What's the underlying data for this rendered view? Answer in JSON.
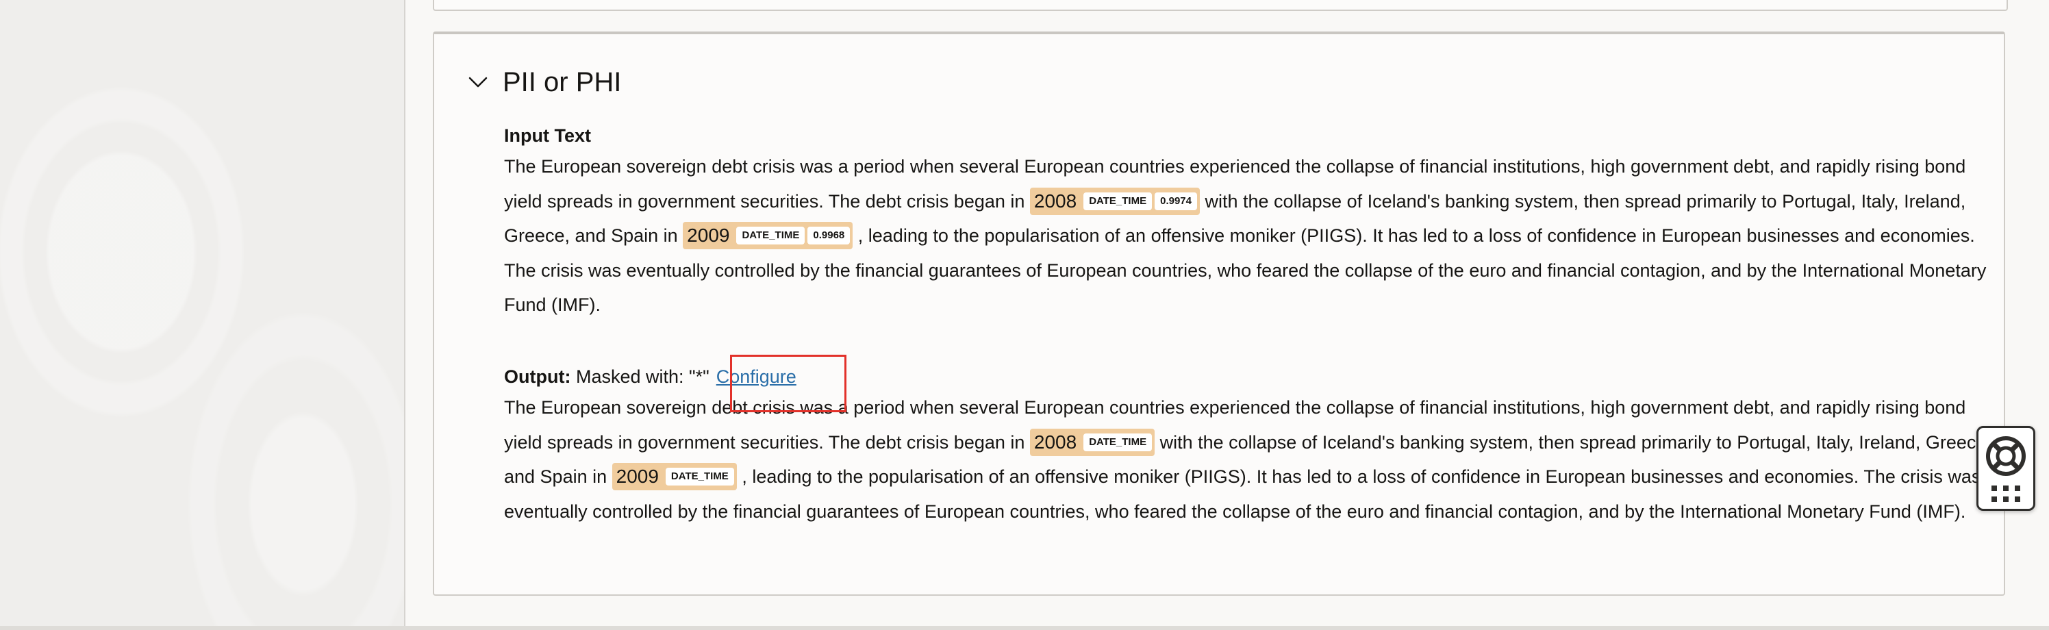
{
  "panel": {
    "title": "PII or PHI"
  },
  "input": {
    "label": "Input Text",
    "segments": {
      "s1": "The European sovereign debt crisis was a period when several European countries experienced the collapse of financial institutions, high government debt, and rapidly rising bond yield spreads in government securities. The debt crisis began in ",
      "e1_text": "2008",
      "e1_type": "DATE_TIME",
      "e1_score": "0.9974",
      "s2": " with the collapse of Iceland's banking system, then spread primarily to Portugal, Italy, Ireland, Greece, and Spain in ",
      "e2_text": "2009",
      "e2_type": "DATE_TIME",
      "e2_score": "0.9968",
      "s3": " , leading to the popularisation of an offensive moniker (PIIGS). It has led to a loss of confidence in European businesses and economies. The crisis was eventually controlled by the financial guarantees of European countries, who feared the collapse of the euro and financial contagion, and by the International Monetary Fund (IMF)."
    }
  },
  "output": {
    "label": "Output:",
    "masked_with": "Masked with: \"*\"",
    "configure_label": "Configure",
    "segments": {
      "s1": "The European sovereign debt crisis was a period when several European countries experienced the collapse of financial institutions, high government debt, and rapidly rising bond yield spreads in government securities. The debt crisis began in ",
      "e1_text": "2008",
      "e1_type": "DATE_TIME",
      "s2": " with the collapse of Iceland's banking system, then spread primarily to Portugal, Italy, Ireland, Greece, and Spain in ",
      "e2_text": "2009",
      "e2_type": "DATE_TIME",
      "s3": " , leading to the popularisation of an offensive moniker (PIIGS). It has led to a loss of confidence in European businesses and economies. The crisis was eventually controlled by the financial guarantees of European countries, who feared the collapse of the euro and financial contagion, and by the International Monetary Fund (IMF)."
    }
  },
  "icons": {
    "chevron": "chevron-down-icon",
    "help": "lifebuoy-icon",
    "apps": "grid-icon"
  },
  "colors": {
    "entity_highlight": "#f0cc9d",
    "link": "#2a6ea8",
    "focus_box": "#e2312a"
  }
}
